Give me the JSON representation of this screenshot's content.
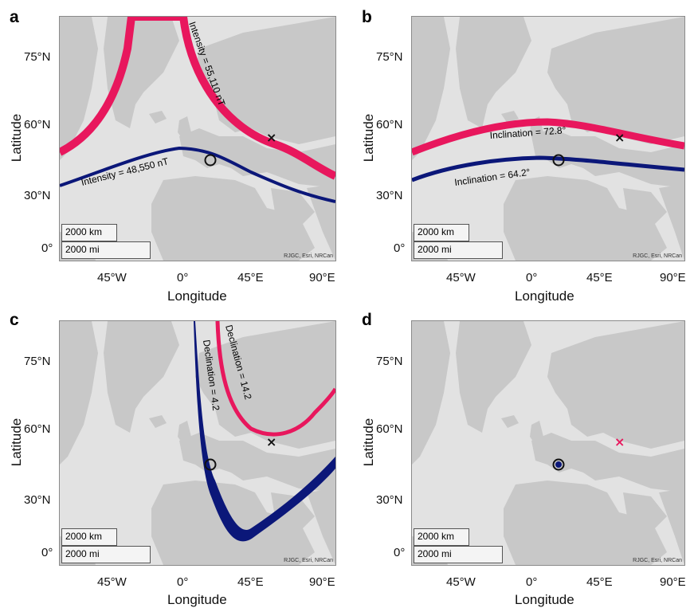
{
  "colors": {
    "crimson": "#e8175d",
    "navy": "#0b1779",
    "land": "#c8c8c8",
    "sea": "#e2e2e2"
  },
  "axes": {
    "y_ticks": [
      "75°N",
      "60°N",
      "30°N",
      "0°"
    ],
    "x_ticks": [
      "45°W",
      "0°",
      "45°E",
      "90°E"
    ],
    "ylabel": "Latitude",
    "xlabel": "Longitude",
    "scale_km": "2000 km",
    "scale_mi": "2000 mi",
    "credit": "RJGC, Esri, NRCan"
  },
  "panels": [
    {
      "letter": "a",
      "labels": [
        "Intensity = 55,110 nT",
        "Intensity = 48,550 nT"
      ]
    },
    {
      "letter": "b",
      "labels": [
        "Inclination = 72.8°",
        "Inclination = 64.2°"
      ]
    },
    {
      "letter": "c",
      "labels": [
        "Declination = 14.2",
        "Declination = 4.2"
      ]
    },
    {
      "letter": "d",
      "labels": []
    }
  ],
  "markers": {
    "x_mark": {
      "lon": 55,
      "lat": 55
    },
    "o_mark": {
      "lon": 15,
      "lat": 46
    }
  }
}
